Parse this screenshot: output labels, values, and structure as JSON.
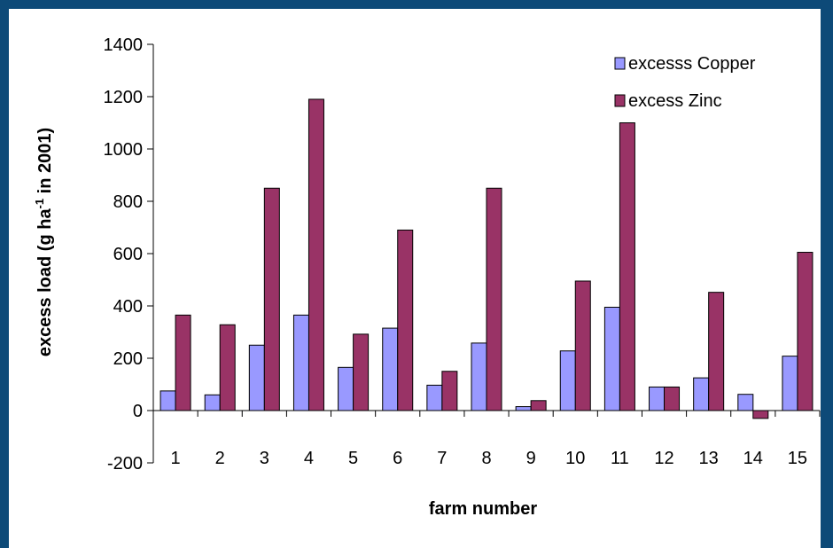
{
  "chart_data": {
    "type": "bar",
    "categories": [
      "1",
      "2",
      "3",
      "4",
      "5",
      "6",
      "7",
      "8",
      "9",
      "10",
      "11",
      "12",
      "13",
      "14",
      "15"
    ],
    "series": [
      {
        "name": "excesss Copper",
        "color": "#9999ff",
        "values": [
          75,
          60,
          250,
          365,
          165,
          315,
          97,
          258,
          15,
          228,
          395,
          90,
          125,
          62,
          208
        ]
      },
      {
        "name": "excess Zinc",
        "color": "#993366",
        "values": [
          365,
          328,
          850,
          1190,
          292,
          690,
          150,
          850,
          38,
          495,
          1100,
          90,
          452,
          -30,
          605
        ]
      }
    ],
    "xlabel": "farm number",
    "ylabel_main": "excess load (g ha",
    "ylabel_sup": "-1",
    "ylabel_end": " in 2001)",
    "ylim": [
      -200,
      1400
    ],
    "yticks": [
      -200,
      0,
      200,
      400,
      600,
      800,
      1000,
      1200,
      1400
    ],
    "grid": false,
    "legend_position": "top-right"
  }
}
